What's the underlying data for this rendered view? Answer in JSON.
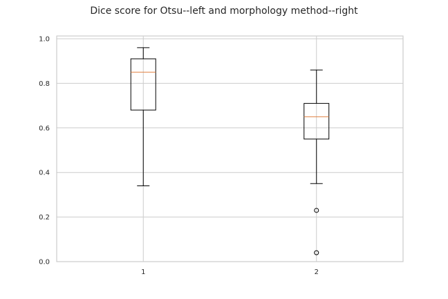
{
  "chart_data": {
    "type": "box",
    "title": "Dice score for Otsu--left  and morphology method--right",
    "xlabel": "",
    "ylabel": "",
    "categories": [
      "1",
      "2"
    ],
    "ylim": [
      0.0,
      1.0
    ],
    "yticks": [
      "0.0",
      "0.2",
      "0.4",
      "0.6",
      "0.8",
      "1.0"
    ],
    "grid": true,
    "boxes": [
      {
        "label": "1",
        "whisker_low": 0.34,
        "q1": 0.68,
        "median": 0.85,
        "q3": 0.91,
        "whisker_high": 0.96,
        "outliers": []
      },
      {
        "label": "2",
        "whisker_low": 0.35,
        "q1": 0.55,
        "median": 0.65,
        "q3": 0.71,
        "whisker_high": 0.86,
        "outliers": [
          0.23,
          0.04
        ]
      }
    ],
    "colors": {
      "box": "#000000",
      "median": "#e08040",
      "grid": "#cccccc",
      "frame": "#cccccc"
    }
  }
}
